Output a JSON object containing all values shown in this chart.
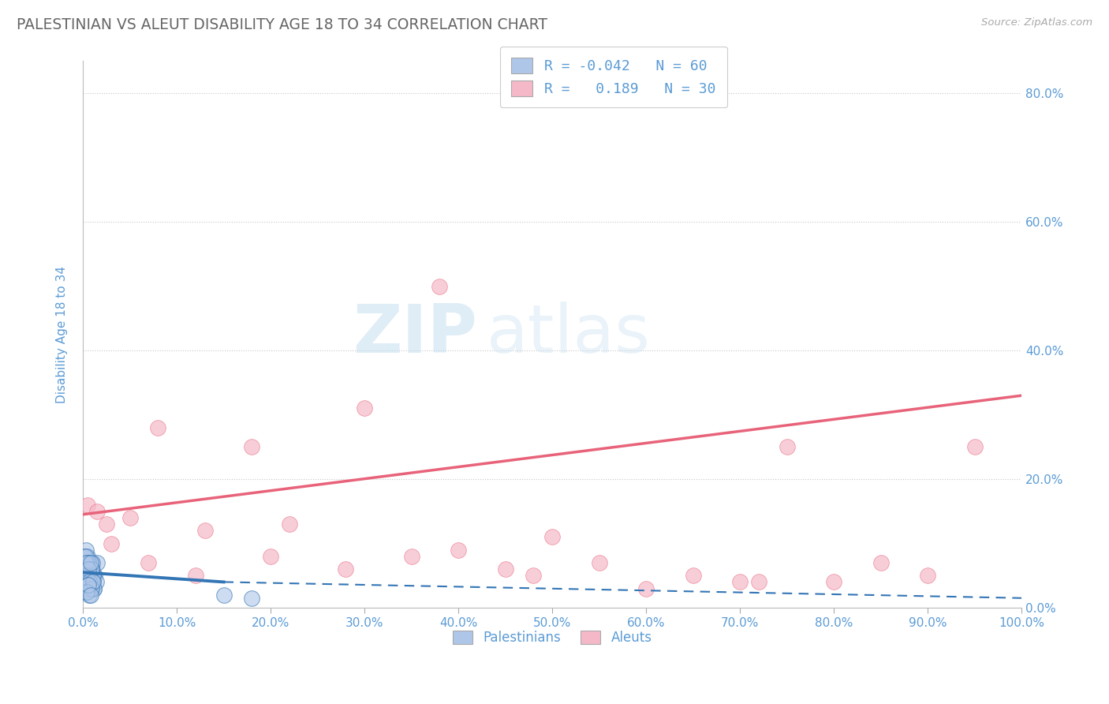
{
  "title": "PALESTINIAN VS ALEUT DISABILITY AGE 18 TO 34 CORRELATION CHART",
  "source": "Source: ZipAtlas.com",
  "ylabel": "Disability Age 18 to 34",
  "legend_r_blue": "-0.042",
  "legend_n_blue": "60",
  "legend_r_pink": "0.189",
  "legend_n_pink": "30",
  "blue_color": "#aec6e8",
  "pink_color": "#f5b8c8",
  "blue_line_color": "#3375b5",
  "pink_line_color": "#e8637a",
  "background_color": "#ffffff",
  "grid_color": "#c8c8c8",
  "title_color": "#666666",
  "label_color": "#5b9bd5",
  "watermark_zip": "ZIP",
  "watermark_atlas": "atlas",
  "palestinians_x": [
    0.2,
    0.3,
    0.4,
    0.5,
    0.5,
    0.6,
    0.7,
    0.8,
    0.9,
    1.0,
    1.1,
    1.2,
    1.3,
    1.4,
    1.5,
    0.3,
    0.4,
    0.5,
    0.6,
    0.7,
    0.8,
    0.9,
    1.0,
    1.1,
    1.2,
    0.2,
    0.3,
    0.4,
    0.5,
    0.6,
    0.7,
    0.8,
    0.9,
    1.0,
    1.1,
    0.2,
    0.3,
    0.4,
    0.5,
    0.6,
    0.7,
    0.8,
    0.9,
    1.0,
    0.3,
    0.4,
    0.5,
    0.6,
    0.7,
    0.8,
    15.0,
    18.0,
    0.3,
    0.5,
    0.7,
    0.9,
    1.1,
    0.4,
    0.6,
    0.8
  ],
  "palestinians_y": [
    4.0,
    5.0,
    3.0,
    6.0,
    8.0,
    5.0,
    4.0,
    7.0,
    5.0,
    6.0,
    4.0,
    3.0,
    5.0,
    4.0,
    7.0,
    9.0,
    6.0,
    4.0,
    7.0,
    5.0,
    3.0,
    6.0,
    4.0,
    5.0,
    3.0,
    8.0,
    6.0,
    4.0,
    7.0,
    5.0,
    3.0,
    6.0,
    4.0,
    7.0,
    5.0,
    3.0,
    8.0,
    6.0,
    4.0,
    7.0,
    5.0,
    3.0,
    6.0,
    4.0,
    7.0,
    5.0,
    3.0,
    6.0,
    4.0,
    7.0,
    2.0,
    1.5,
    2.5,
    3.5,
    2.0,
    3.0,
    4.0,
    2.5,
    3.5,
    2.0
  ],
  "aleuts_x": [
    0.5,
    1.5,
    2.5,
    5.0,
    8.0,
    13.0,
    18.0,
    22.0,
    30.0,
    35.0,
    40.0,
    45.0,
    50.0,
    55.0,
    60.0,
    65.0,
    70.0,
    75.0,
    80.0,
    85.0,
    90.0,
    95.0,
    3.0,
    7.0,
    12.0,
    20.0,
    28.0,
    38.0,
    48.0,
    72.0
  ],
  "aleuts_y": [
    16.0,
    15.0,
    13.0,
    14.0,
    28.0,
    12.0,
    25.0,
    13.0,
    31.0,
    8.0,
    9.0,
    6.0,
    11.0,
    7.0,
    3.0,
    5.0,
    4.0,
    25.0,
    4.0,
    7.0,
    5.0,
    25.0,
    10.0,
    7.0,
    5.0,
    8.0,
    6.0,
    50.0,
    5.0,
    4.0
  ],
  "pink_line_x0": 0.0,
  "pink_line_y0": 14.5,
  "pink_line_x1": 100.0,
  "pink_line_y1": 33.0,
  "blue_line_solid_x0": 0.0,
  "blue_line_solid_y0": 5.5,
  "blue_line_solid_x1": 15.0,
  "blue_line_solid_y1": 4.0,
  "blue_line_dash_x0": 15.0,
  "blue_line_dash_y0": 4.0,
  "blue_line_dash_x1": 100.0,
  "blue_line_dash_y1": 1.5,
  "xmin": 0.0,
  "xmax": 100.0,
  "ymin": 0.0,
  "ymax": 85.0,
  "yticks": [
    0.0,
    20.0,
    40.0,
    60.0,
    80.0
  ],
  "xticks": [
    0.0,
    10.0,
    20.0,
    30.0,
    40.0,
    50.0,
    60.0,
    70.0,
    80.0,
    90.0,
    100.0
  ]
}
